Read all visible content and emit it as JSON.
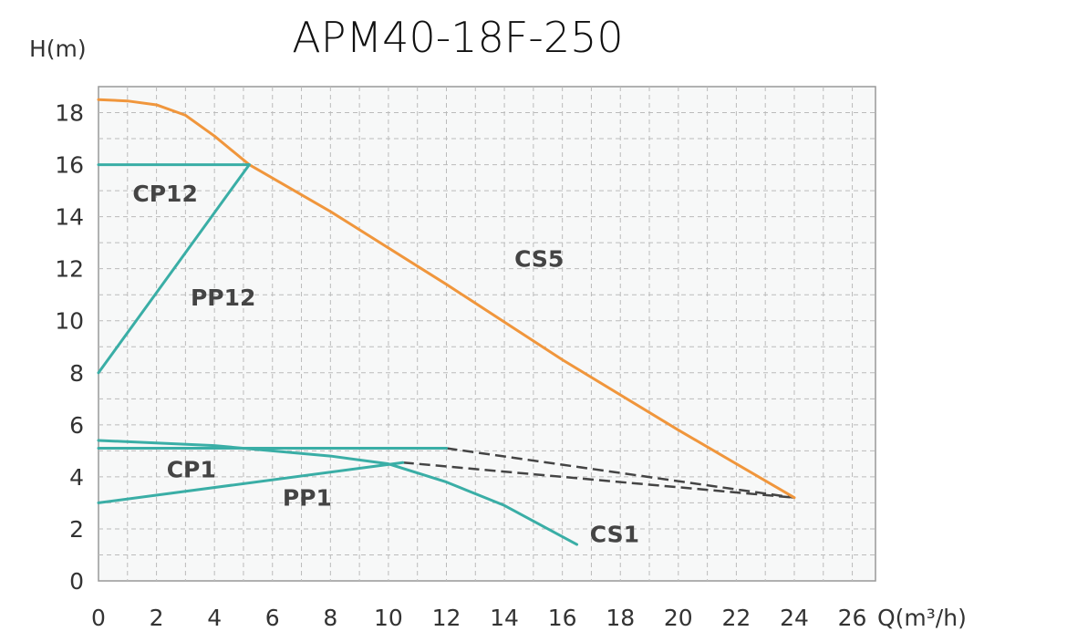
{
  "chart_data": {
    "type": "line",
    "title": "APM40-18F-250",
    "xlabel": "Q(m³/h)",
    "ylabel": "H(m)",
    "xlim": [
      0,
      26.8
    ],
    "ylim": [
      0,
      19
    ],
    "grid": true,
    "xticks": [
      0,
      2,
      4,
      6,
      8,
      10,
      12,
      14,
      16,
      18,
      20,
      22,
      24,
      26
    ],
    "yticks": [
      0,
      2,
      4,
      6,
      8,
      10,
      12,
      14,
      16,
      18
    ],
    "colors": {
      "CS5": "#f0963c",
      "teal": "#3aaea6",
      "dashed": "#444444"
    },
    "series": [
      {
        "name": "CS5",
        "color": "#f0963c",
        "points": [
          [
            0,
            18.5
          ],
          [
            1,
            18.45
          ],
          [
            2,
            18.3
          ],
          [
            3,
            17.9
          ],
          [
            4,
            17.1
          ],
          [
            5.2,
            16
          ],
          [
            8,
            14.2
          ],
          [
            12,
            11.4
          ],
          [
            16,
            8.5
          ],
          [
            20,
            5.8
          ],
          [
            24,
            3.2
          ]
        ],
        "label_at": [
          15.2,
          12.4
        ]
      },
      {
        "name": "CP12",
        "color": "#3aaea6",
        "points": [
          [
            0,
            16
          ],
          [
            5.2,
            16
          ]
        ],
        "label_at": [
          2.3,
          14.9
        ]
      },
      {
        "name": "PP12",
        "color": "#3aaea6",
        "points": [
          [
            0,
            8
          ],
          [
            5.2,
            16
          ]
        ],
        "label_at": [
          4.3,
          10.9
        ]
      },
      {
        "name": "CP1",
        "color": "#3aaea6",
        "points": [
          [
            0,
            5.1
          ],
          [
            12,
            5.1
          ]
        ],
        "dashed_to": [
          24,
          3.2
        ],
        "label_at": [
          3.2,
          4.3
        ]
      },
      {
        "name": "PP1",
        "color": "#3aaea6",
        "points": [
          [
            0,
            3.0
          ],
          [
            10.5,
            4.55
          ]
        ],
        "dashed_to": [
          24,
          3.2
        ],
        "label_at": [
          7.2,
          3.2
        ]
      },
      {
        "name": "CS1",
        "color": "#3aaea6",
        "points": [
          [
            0,
            5.4
          ],
          [
            4,
            5.2
          ],
          [
            8,
            4.8
          ],
          [
            10,
            4.5
          ],
          [
            12,
            3.8
          ],
          [
            14,
            2.9
          ],
          [
            16.5,
            1.4
          ]
        ],
        "label_at": [
          17.8,
          1.8
        ]
      }
    ]
  }
}
